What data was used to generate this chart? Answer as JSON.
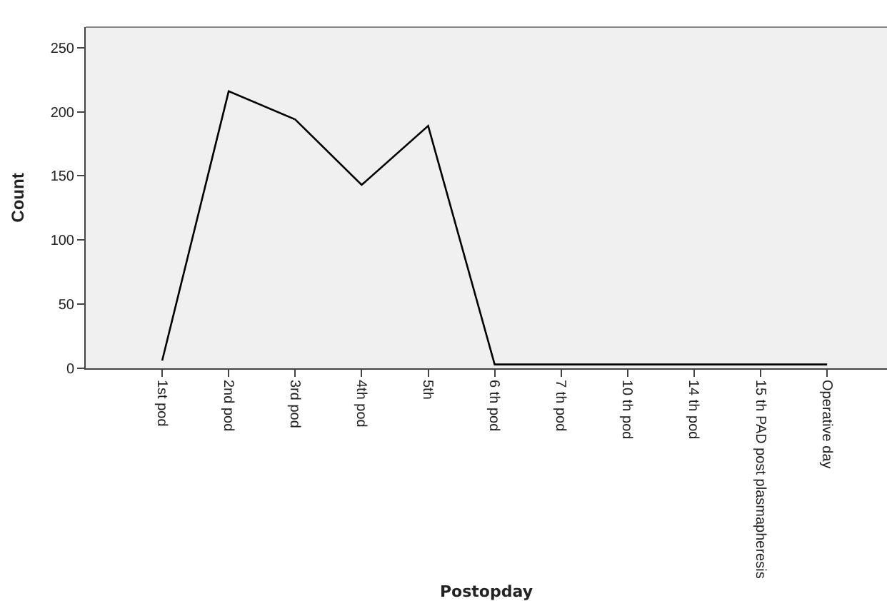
{
  "chart_data": {
    "type": "line",
    "xlabel": "Postopday",
    "ylabel": "Count",
    "categories": [
      "1st pod",
      "2nd pod",
      "3rd pod",
      "4th pod",
      "5th",
      "6 th pod",
      "7 th pod",
      "10 th pod",
      "14 th pod",
      "15 th PAD post plasmapheresis",
      "Operative day"
    ],
    "series": [
      {
        "color": "#000000",
        "values": [
          6,
          216,
          194,
          143,
          189,
          3,
          3,
          3,
          3,
          3,
          3
        ]
      }
    ],
    "ylim": [
      0,
      266
    ],
    "yticks": [
      0,
      50,
      100,
      150,
      200,
      250
    ],
    "grid": false,
    "marker": "none",
    "line_style": "solid"
  }
}
